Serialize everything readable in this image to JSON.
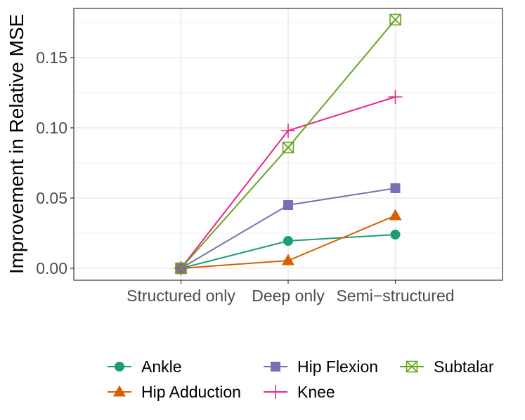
{
  "chart_data": {
    "type": "line",
    "title": "",
    "xlabel": "",
    "ylabel": "Improvement in Relative MSE",
    "categories": [
      "Structured only",
      "Deep only",
      "Semi−structured"
    ],
    "ylim": [
      -0.0085,
      0.185
    ],
    "yticks": [
      0.0,
      0.05,
      0.1,
      0.15
    ],
    "ytick_labels": [
      "0.00",
      "0.05",
      "0.10",
      "0.15"
    ],
    "grid": true,
    "legend_position": "bottom",
    "series": [
      {
        "name": "Ankle",
        "color": "#1b9e77",
        "marker": "circle",
        "values": [
          0.0,
          0.0195,
          0.024
        ]
      },
      {
        "name": "Hip Adduction",
        "color": "#d95f02",
        "marker": "triangle",
        "values": [
          0.0,
          0.0055,
          0.0375
        ]
      },
      {
        "name": "Hip Flexion",
        "color": "#7570b3",
        "marker": "square",
        "values": [
          0.0,
          0.045,
          0.057
        ]
      },
      {
        "name": "Knee",
        "color": "#e7298a",
        "marker": "plus",
        "values": [
          0.0,
          0.098,
          0.122
        ]
      },
      {
        "name": "Subtalar",
        "color": "#66a61e",
        "marker": "square-cross",
        "values": [
          0.0,
          0.086,
          0.177
        ]
      }
    ]
  }
}
